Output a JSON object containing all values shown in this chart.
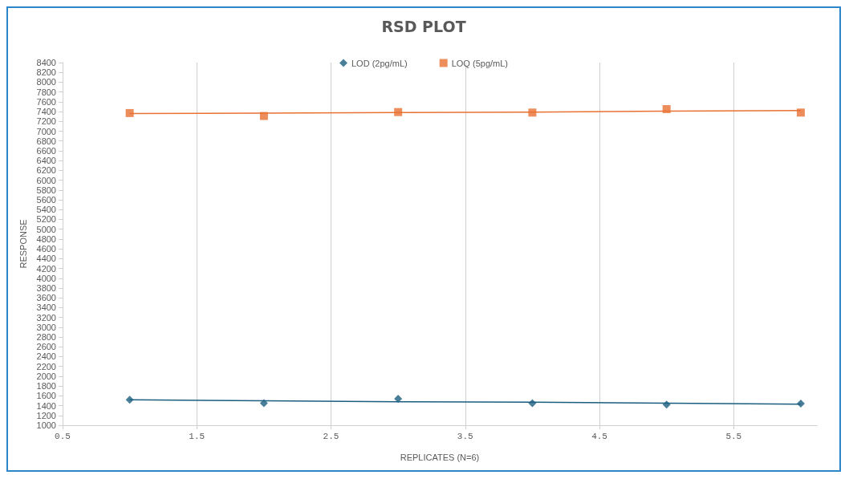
{
  "chart_data": {
    "type": "scatter",
    "title": "RSD PLOT",
    "xlabel": "REPLICATES (N=6)",
    "ylabel": "RESPONSE",
    "x": [
      1,
      2,
      3,
      4,
      5,
      6
    ],
    "series": [
      {
        "name": "LOD (2pg/mL)",
        "color": "#1b5e80",
        "marker": "diamond",
        "values": [
          1520,
          1450,
          1540,
          1450,
          1420,
          1440
        ]
      },
      {
        "name": "LOQ (5pg/mL)",
        "color": "#e97132",
        "marker": "square",
        "values": [
          7370,
          7310,
          7390,
          7380,
          7450,
          7380
        ]
      },
      {
        "type": "line",
        "color": "#1b5e80",
        "marker": "none",
        "values": [
          1520,
          1500,
          1480,
          1470,
          1450,
          1430
        ]
      },
      {
        "type": "line",
        "color": "#e97132",
        "marker": "none",
        "values": [
          7360,
          7370,
          7380,
          7390,
          7410,
          7420
        ]
      }
    ],
    "xlim": [
      0.5,
      6.12
    ],
    "xticks": [
      0.5,
      1.5,
      2.5,
      3.5,
      4.5,
      5.5
    ],
    "ylim": [
      1000,
      8400
    ],
    "yticks": [
      1000,
      1200,
      1400,
      1600,
      1800,
      2000,
      2200,
      2400,
      2600,
      2800,
      3000,
      3200,
      3400,
      3600,
      3800,
      4000,
      4200,
      4400,
      4600,
      4800,
      5000,
      5200,
      5400,
      5600,
      5800,
      6000,
      6200,
      6400,
      6600,
      6800,
      7000,
      7200,
      7400,
      7600,
      7800,
      8000,
      8200,
      8400
    ],
    "grid": "x",
    "legend": "top"
  }
}
